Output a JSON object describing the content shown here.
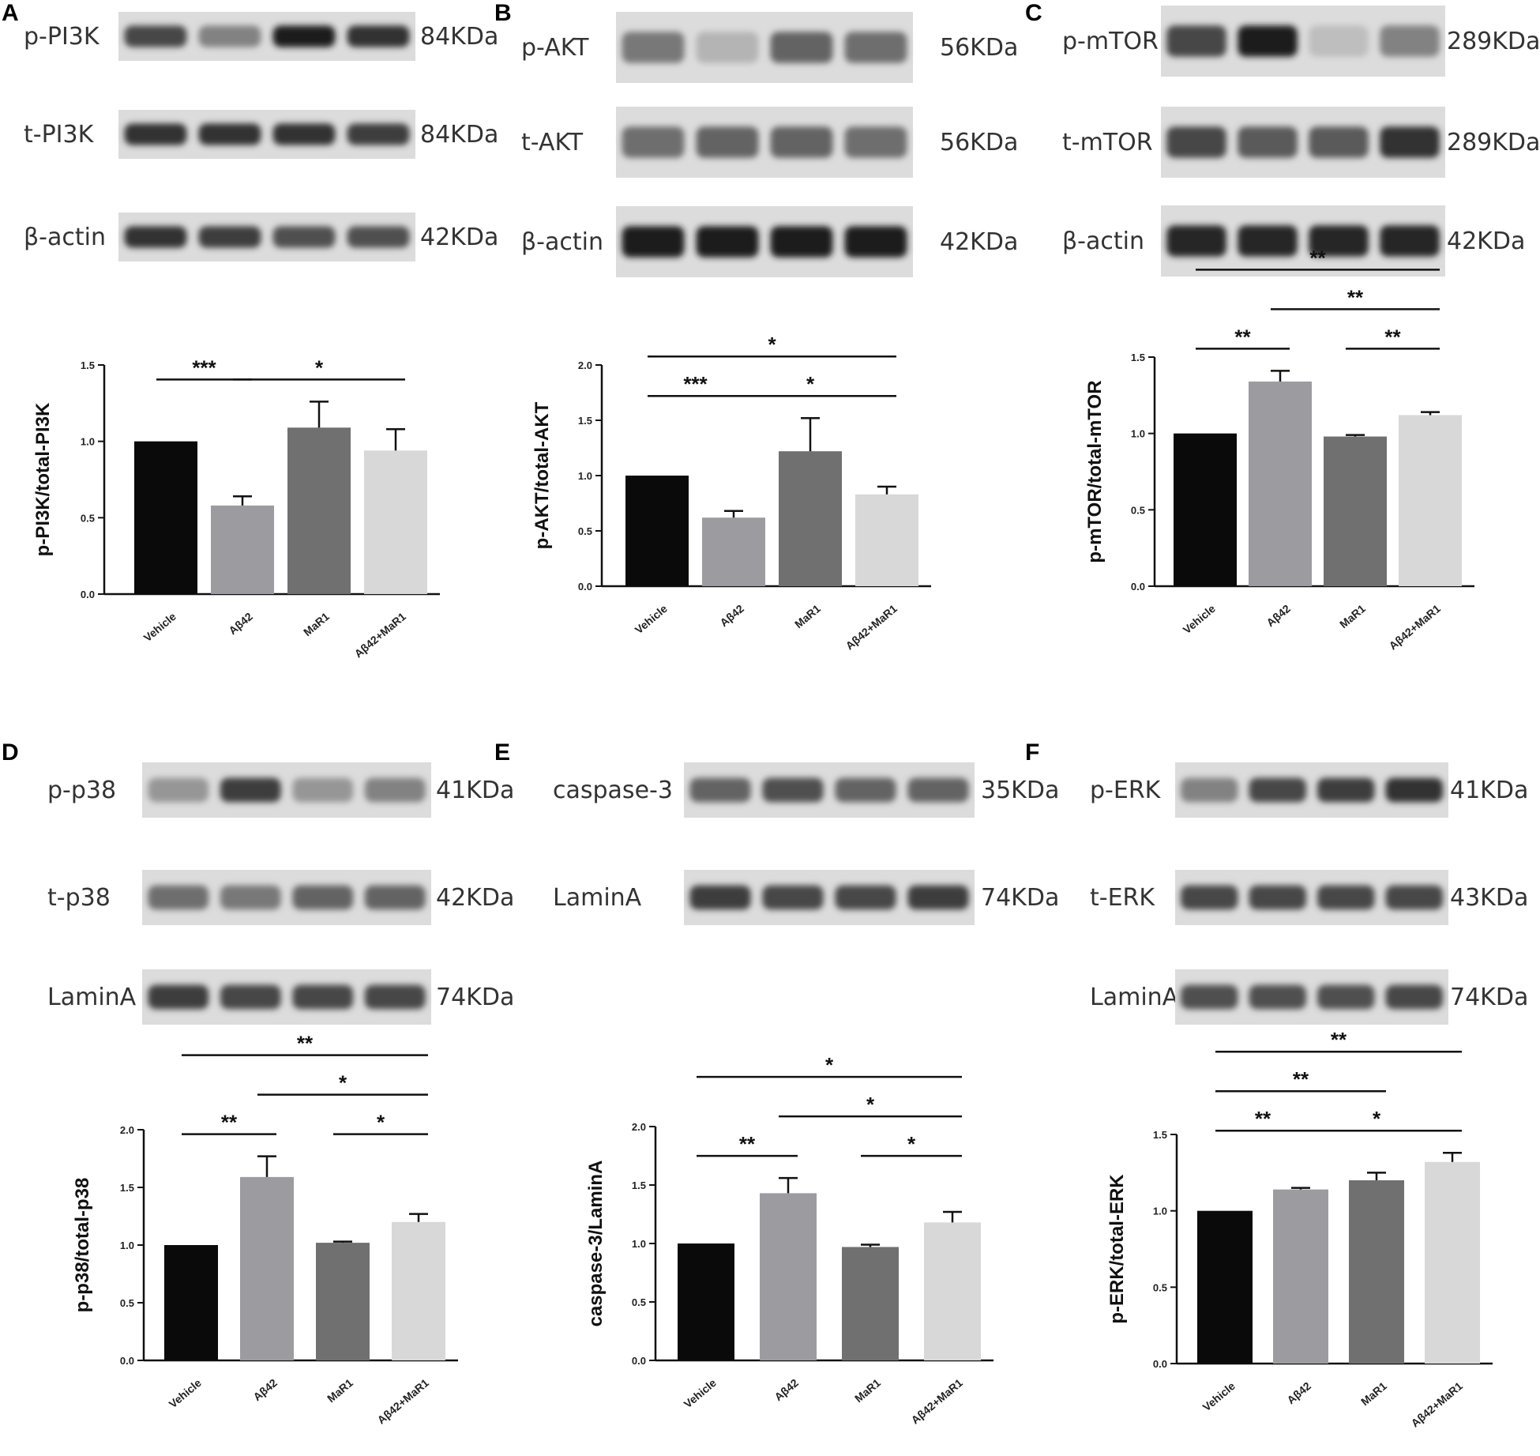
{
  "panels": [
    {
      "letter": "A",
      "blots": [
        {
          "label": "p-PI3K",
          "kda": "84KDa",
          "intensities": [
            0.75,
            0.45,
            0.95,
            0.85
          ]
        },
        {
          "label": "t-PI3K",
          "kda": "84KDa",
          "intensities": [
            0.85,
            0.85,
            0.85,
            0.8
          ]
        },
        {
          "label": "β-actin",
          "kda": "42KDa",
          "intensities": [
            0.85,
            0.8,
            0.7,
            0.7
          ]
        }
      ]
    },
    {
      "letter": "B",
      "blots": [
        {
          "label": "p-AKT",
          "kda": "56KDa",
          "intensities": [
            0.5,
            0.2,
            0.6,
            0.55
          ]
        },
        {
          "label": "t-AKT",
          "kda": "56KDa",
          "intensities": [
            0.55,
            0.6,
            0.6,
            0.55
          ]
        },
        {
          "label": "β-actin",
          "kda": "42KDa",
          "intensities": [
            0.95,
            0.95,
            0.95,
            0.95
          ]
        }
      ]
    },
    {
      "letter": "C",
      "blots": [
        {
          "label": "p-mTOR",
          "kda": "289KDa",
          "intensities": [
            0.75,
            0.95,
            0.15,
            0.45
          ]
        },
        {
          "label": "t-mTOR",
          "kda": "289KDa",
          "intensities": [
            0.75,
            0.65,
            0.65,
            0.85
          ]
        },
        {
          "label": "β-actin",
          "kda": "42KDa",
          "intensities": [
            0.9,
            0.9,
            0.9,
            0.9
          ]
        }
      ]
    },
    {
      "letter": "D",
      "blots": [
        {
          "label": "p-p38",
          "kda": "41KDa",
          "intensities": [
            0.35,
            0.8,
            0.35,
            0.45
          ]
        },
        {
          "label": "t-p38",
          "kda": "42KDa",
          "intensities": [
            0.55,
            0.5,
            0.6,
            0.6
          ]
        },
        {
          "label": "LaminA",
          "kda": "74KDa",
          "intensities": [
            0.8,
            0.75,
            0.75,
            0.75
          ]
        }
      ]
    },
    {
      "letter": "E",
      "blots": [
        {
          "label": "caspase-3",
          "kda": "35KDa",
          "intensities": [
            0.6,
            0.7,
            0.6,
            0.6
          ]
        },
        {
          "label": "LaminA",
          "kda": "74KDa",
          "intensities": [
            0.8,
            0.75,
            0.75,
            0.8
          ]
        }
      ]
    },
    {
      "letter": "F",
      "blots": [
        {
          "label": "p-ERK",
          "kda": "41KDa",
          "intensities": [
            0.45,
            0.75,
            0.8,
            0.85
          ]
        },
        {
          "label": "t-ERK",
          "kda": "43KDa",
          "intensities": [
            0.75,
            0.75,
            0.75,
            0.75
          ]
        },
        {
          "label": "LaminA",
          "kda": "74KDa",
          "intensities": [
            0.7,
            0.7,
            0.7,
            0.75
          ]
        }
      ]
    }
  ],
  "chart_data": [
    {
      "type": "bar",
      "panel": "A",
      "categories": [
        "Vehicle",
        "Aβ42",
        "MaR1",
        "Aβ42+MaR1"
      ],
      "values": [
        1.0,
        0.58,
        1.09,
        0.94
      ],
      "errors": [
        0.0,
        0.06,
        0.17,
        0.14
      ],
      "ylabel": "p-PI3K/total-PI3K",
      "ylim": [
        0,
        1.5
      ],
      "yticks": [
        "0.0",
        "0.5",
        "1.0",
        "1.5"
      ],
      "colors": [
        "#0a0a0a",
        "#9c9ca0",
        "#707070",
        "#d8d8d8"
      ],
      "significance": [
        {
          "from": 0,
          "to": 1,
          "stars": "***"
        },
        {
          "from": 1,
          "to": 3,
          "stars": "*"
        }
      ]
    },
    {
      "type": "bar",
      "panel": "B",
      "categories": [
        "Vehicle",
        "Aβ42",
        "MaR1",
        "Aβ42+MaR1"
      ],
      "values": [
        1.0,
        0.62,
        1.22,
        0.83
      ],
      "errors": [
        0.0,
        0.06,
        0.3,
        0.07
      ],
      "ylabel": "p-AKT/total-AKT",
      "ylim": [
        0,
        2.0
      ],
      "yticks": [
        "0.0",
        "0.5",
        "1.0",
        "1.5",
        "2.0"
      ],
      "colors": [
        "#0a0a0a",
        "#9c9ca0",
        "#707070",
        "#d8d8d8"
      ],
      "significance": [
        {
          "from": 0,
          "to": 1,
          "stars": "***"
        },
        {
          "from": 1,
          "to": 3,
          "stars": "*"
        },
        {
          "from": 0,
          "to": 3,
          "stars": "*"
        }
      ]
    },
    {
      "type": "bar",
      "panel": "C",
      "categories": [
        "Vehicle",
        "Aβ42",
        "MaR1",
        "Aβ42+MaR1"
      ],
      "values": [
        1.0,
        1.34,
        0.98,
        1.12
      ],
      "errors": [
        0.0,
        0.07,
        0.01,
        0.02
      ],
      "ylabel": "p-mTOR/total-mTOR",
      "ylim": [
        0,
        1.5
      ],
      "yticks": [
        "0.0",
        "0.5",
        "1.0",
        "1.5"
      ],
      "colors": [
        "#0a0a0a",
        "#9c9ca0",
        "#707070",
        "#d8d8d8"
      ],
      "significance": [
        {
          "from": 0,
          "to": 1,
          "stars": "**"
        },
        {
          "from": 2,
          "to": 3,
          "stars": "**"
        },
        {
          "from": 1,
          "to": 3,
          "stars": "**"
        },
        {
          "from": 0,
          "to": 3,
          "stars": "**"
        }
      ]
    },
    {
      "type": "bar",
      "panel": "D",
      "categories": [
        "Vehicle",
        "Aβ42",
        "MaR1",
        "Aβ42+MaR1"
      ],
      "values": [
        1.0,
        1.59,
        1.02,
        1.2
      ],
      "errors": [
        0.0,
        0.18,
        0.01,
        0.07
      ],
      "ylabel": "p-p38/total-p38",
      "ylim": [
        0,
        2.0
      ],
      "yticks": [
        "0.0",
        "0.5",
        "1.0",
        "1.5",
        "2.0"
      ],
      "colors": [
        "#0a0a0a",
        "#9c9ca0",
        "#707070",
        "#d8d8d8"
      ],
      "significance": [
        {
          "from": 0,
          "to": 1,
          "stars": "**"
        },
        {
          "from": 2,
          "to": 3,
          "stars": "*"
        },
        {
          "from": 1,
          "to": 3,
          "stars": "*"
        },
        {
          "from": 0,
          "to": 3,
          "stars": "**"
        }
      ]
    },
    {
      "type": "bar",
      "panel": "E",
      "categories": [
        "Vehicle",
        "Aβ42",
        "MaR1",
        "Aβ42+MaR1"
      ],
      "values": [
        1.0,
        1.43,
        0.97,
        1.18
      ],
      "errors": [
        0.0,
        0.13,
        0.02,
        0.09
      ],
      "ylabel": "caspase-3/LaminA",
      "ylim": [
        0,
        2.0
      ],
      "yticks": [
        "0.0",
        "0.5",
        "1.0",
        "1.5",
        "2.0"
      ],
      "colors": [
        "#0a0a0a",
        "#9c9ca0",
        "#707070",
        "#d8d8d8"
      ],
      "significance": [
        {
          "from": 0,
          "to": 1,
          "stars": "**"
        },
        {
          "from": 2,
          "to": 3,
          "stars": "*"
        },
        {
          "from": 1,
          "to": 3,
          "stars": "*"
        },
        {
          "from": 0,
          "to": 3,
          "stars": "*"
        }
      ]
    },
    {
      "type": "bar",
      "panel": "F",
      "categories": [
        "Vehicle",
        "Aβ42",
        "MaR1",
        "Aβ42+MaR1"
      ],
      "values": [
        1.0,
        1.14,
        1.2,
        1.32
      ],
      "errors": [
        0.0,
        0.01,
        0.05,
        0.06
      ],
      "ylabel": "p-ERK/total-ERK",
      "ylim": [
        0,
        1.5
      ],
      "yticks": [
        "0.0",
        "0.5",
        "1.0",
        "1.5"
      ],
      "colors": [
        "#0a0a0a",
        "#9c9ca0",
        "#707070",
        "#d8d8d8"
      ],
      "significance": [
        {
          "from": 0,
          "to": 1,
          "stars": "**"
        },
        {
          "from": 1,
          "to": 3,
          "stars": "*"
        },
        {
          "from": 0,
          "to": 2,
          "stars": "**"
        },
        {
          "from": 0,
          "to": 3,
          "stars": "**"
        }
      ]
    }
  ]
}
